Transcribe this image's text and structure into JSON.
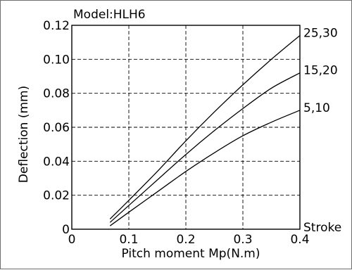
{
  "chart_data": {
    "type": "line",
    "title": "Model:HLH6",
    "xlabel": "Pitch moment  Mp(N.m)",
    "ylabel": "Deflection  (mm)",
    "xlim": [
      0,
      0.4
    ],
    "ylim": [
      0,
      0.12
    ],
    "x_ticks": [
      "0",
      "0.1",
      "0.2",
      "0.3",
      "0.4"
    ],
    "y_ticks": [
      "0",
      "0.02",
      "0.04",
      "0.06",
      "0.08",
      "0.10",
      "0.12"
    ],
    "grid": true,
    "legend_title": "Stroke",
    "series": [
      {
        "name": "25,30",
        "x": [
          0.067,
          0.1,
          0.15,
          0.2,
          0.25,
          0.3,
          0.35,
          0.4
        ],
        "y": [
          0.006,
          0.017,
          0.034,
          0.052,
          0.069,
          0.085,
          0.1,
          0.114
        ]
      },
      {
        "name": "15,20",
        "x": [
          0.067,
          0.1,
          0.15,
          0.2,
          0.25,
          0.3,
          0.35,
          0.4
        ],
        "y": [
          0.004,
          0.014,
          0.029,
          0.044,
          0.058,
          0.071,
          0.083,
          0.092
        ]
      },
      {
        "name": "5,10",
        "x": [
          0.067,
          0.1,
          0.15,
          0.2,
          0.25,
          0.3,
          0.35,
          0.4
        ],
        "y": [
          0.002,
          0.01,
          0.022,
          0.034,
          0.045,
          0.055,
          0.063,
          0.07
        ]
      }
    ]
  }
}
